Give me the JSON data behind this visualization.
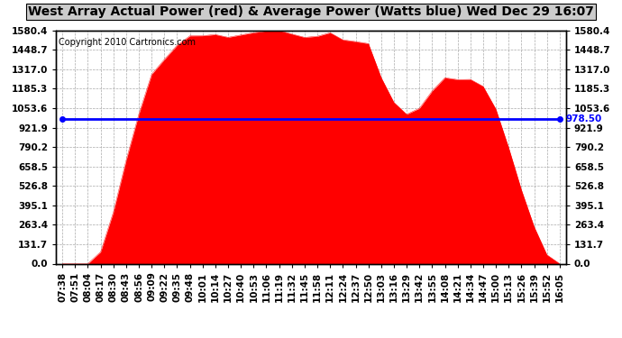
{
  "title": "West Array Actual Power (red) & Average Power (Watts blue) Wed Dec 29 16:07",
  "copyright": "Copyright 2010 Cartronics.com",
  "avg_power": 978.5,
  "y_max": 1580.4,
  "y_min": 0.0,
  "y_ticks": [
    0.0,
    131.7,
    263.4,
    395.1,
    526.8,
    658.5,
    790.2,
    921.9,
    1053.6,
    1185.3,
    1317.0,
    1448.7,
    1580.4
  ],
  "x_labels": [
    "07:38",
    "07:51",
    "08:04",
    "08:17",
    "08:30",
    "08:43",
    "08:56",
    "09:09",
    "09:22",
    "09:35",
    "09:48",
    "10:01",
    "10:14",
    "10:27",
    "10:40",
    "10:53",
    "11:06",
    "11:19",
    "11:32",
    "11:45",
    "11:58",
    "12:11",
    "12:24",
    "12:37",
    "12:50",
    "13:03",
    "13:16",
    "13:29",
    "13:42",
    "13:55",
    "14:08",
    "14:21",
    "14:34",
    "14:47",
    "15:00",
    "15:13",
    "15:26",
    "15:39",
    "15:52",
    "16:05"
  ],
  "power_curve": [
    0,
    0,
    0,
    80,
    350,
    700,
    1050,
    1280,
    1400,
    1480,
    1530,
    1555,
    1565,
    1570,
    1575,
    1578,
    1580,
    1578,
    1575,
    1570,
    1565,
    1555,
    1545,
    1520,
    1480,
    1300,
    1100,
    1000,
    1080,
    1180,
    1250,
    1280,
    1260,
    1200,
    1050,
    800,
    500,
    250,
    60,
    0
  ],
  "title_fontsize": 10,
  "copyright_fontsize": 7,
  "tick_fontsize": 7.5,
  "line_color": "#0000ff",
  "fill_color": "#ff0000",
  "bg_color": "#ffffff",
  "grid_color": "#aaaaaa"
}
